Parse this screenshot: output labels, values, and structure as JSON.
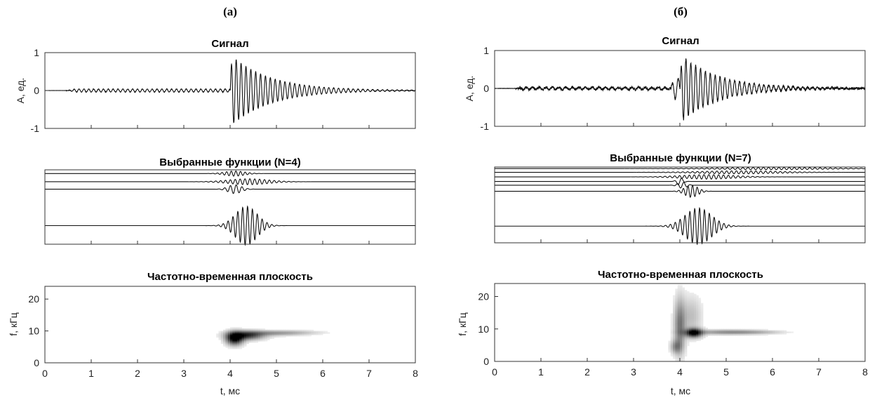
{
  "chart_data": [
    {
      "panel": "(а)",
      "plots": [
        {
          "type": "line",
          "title": "Сигнал",
          "ylabel": "A, ед.",
          "xlim": [
            0,
            8
          ],
          "ylim": [
            -1,
            1
          ],
          "yticks": [
            "1",
            "0",
            "-1"
          ],
          "xticks": [
            0,
            1,
            2,
            3,
            4,
            5,
            6,
            7,
            8
          ],
          "series": [
            {
              "kind": "wave",
              "precursor": {
                "start": 0.5,
                "end": 4.0,
                "amp": 0.04,
                "freq": 9.5
              },
              "burst": {
                "start": 4.0,
                "amp": 0.95,
                "freq": 9.5,
                "decay": 0.85
              },
              "noise": 0.006,
              "seed": 3
            }
          ]
        },
        {
          "type": "line",
          "title": "Выбранные функции (N=4)",
          "xlim": [
            0,
            8
          ],
          "ylim": [
            0,
            1
          ],
          "xticks": [
            0,
            1,
            2,
            3,
            4,
            5,
            6,
            7,
            8
          ],
          "series": [
            {
              "base": 0.95,
              "amp": 0.035,
              "center": 4.1,
              "width": 0.3,
              "freq": 10
            },
            {
              "base": 0.84,
              "amp": 0.04,
              "center": 4.4,
              "width": 0.6,
              "freq": 9.5
            },
            {
              "base": 0.74,
              "amp": 0.06,
              "center": 4.1,
              "width": 0.2,
              "freq": 8
            },
            {
              "base": 0.25,
              "amp": 0.26,
              "center": 4.35,
              "width": 0.33,
              "freq": 9.5
            }
          ]
        },
        {
          "type": "heatmap",
          "title": "Частотно-временная плоскость",
          "xlabel": "t, мс",
          "ylabel": "f, кГц",
          "xlim": [
            0,
            8
          ],
          "ylim": [
            0,
            24
          ],
          "yticks": [
            20,
            10,
            0
          ],
          "xticks": [
            0,
            1,
            2,
            3,
            4,
            5,
            6,
            7,
            8
          ],
          "blobs": [
            {
              "t": 4.1,
              "f": 7.6,
              "st": 0.12,
              "sf": 1.3,
              "w": 1.0
            },
            {
              "t": 4.35,
              "f": 8.6,
              "st": 0.25,
              "sf": 0.9,
              "w": 0.75
            },
            {
              "t": 4.9,
              "f": 9.3,
              "st": 0.45,
              "sf": 0.55,
              "w": 0.3
            },
            {
              "t": 5.5,
              "f": 9.5,
              "st": 0.4,
              "sf": 0.45,
              "w": 0.1
            }
          ]
        }
      ]
    },
    {
      "panel": "(б)",
      "plots": [
        {
          "type": "line",
          "title": "Сигнал",
          "ylabel": "A, ед.",
          "xlim": [
            0,
            8
          ],
          "ylim": [
            -1,
            1
          ],
          "yticks": [
            "1",
            "0",
            "-1"
          ],
          "xticks": [
            0,
            1,
            2,
            3,
            4,
            5,
            6,
            7,
            8
          ],
          "series": [
            {
              "kind": "wave",
              "precursor": {
                "start": 0.5,
                "end": 3.8,
                "amp": 0.03,
                "freq": 7
              },
              "pre_burst": {
                "start": 3.8,
                "end": 4.05,
                "amp": 0.3,
                "freq": 7.5
              },
              "burst": {
                "start": 4.0,
                "amp": 0.92,
                "freq": 9.5,
                "decay": 0.8
              },
              "noise": 0.03,
              "seed": 11
            }
          ]
        },
        {
          "type": "line",
          "title": "Выбранные функции (N=7)",
          "xlim": [
            0,
            8
          ],
          "ylim": [
            0,
            1
          ],
          "xticks": [
            0,
            1,
            2,
            3,
            4,
            5,
            6,
            7,
            8
          ],
          "series": [
            {
              "base": 0.98,
              "amp": 0.015,
              "center": 6.0,
              "width": 1.6,
              "freq": 9
            },
            {
              "base": 0.93,
              "amp": 0.02,
              "center": 5.3,
              "width": 1.2,
              "freq": 9.5
            },
            {
              "base": 0.87,
              "amp": 0.03,
              "center": 4.6,
              "width": 0.8,
              "freq": 9.5
            },
            {
              "base": 0.81,
              "amp": 0.05,
              "center": 4.0,
              "width": 0.09,
              "freq": 6
            },
            {
              "base": 0.76,
              "amp": 0.04,
              "center": 4.05,
              "width": 0.13,
              "freq": 7
            },
            {
              "base": 0.68,
              "amp": 0.08,
              "center": 4.25,
              "width": 0.2,
              "freq": 10
            },
            {
              "base": 0.22,
              "amp": 0.24,
              "center": 4.4,
              "width": 0.4,
              "freq": 9.5
            }
          ]
        },
        {
          "type": "heatmap",
          "title": "Частотно-временная плоскость",
          "xlabel": "t, мс",
          "ylabel": "f, кГц",
          "xlim": [
            0,
            8
          ],
          "ylim": [
            0,
            24
          ],
          "yticks": [
            20,
            10,
            0
          ],
          "xticks": [
            0,
            1,
            2,
            3,
            4,
            5,
            6,
            7,
            8
          ],
          "blobs": [
            {
              "t": 4.3,
              "f": 8.8,
              "st": 0.12,
              "sf": 0.9,
              "w": 1.0
            },
            {
              "t": 4.0,
              "f": 11.0,
              "st": 0.08,
              "sf": 5.5,
              "w": 0.45
            },
            {
              "t": 3.92,
              "f": 4.5,
              "st": 0.08,
              "sf": 1.4,
              "w": 0.35
            },
            {
              "t": 4.25,
              "f": 14.0,
              "st": 0.15,
              "sf": 4.0,
              "w": 0.18
            },
            {
              "t": 5.0,
              "f": 9.0,
              "st": 0.5,
              "sf": 0.5,
              "w": 0.35
            },
            {
              "t": 5.7,
              "f": 9.0,
              "st": 0.4,
              "sf": 0.4,
              "w": 0.15
            }
          ]
        }
      ]
    }
  ]
}
